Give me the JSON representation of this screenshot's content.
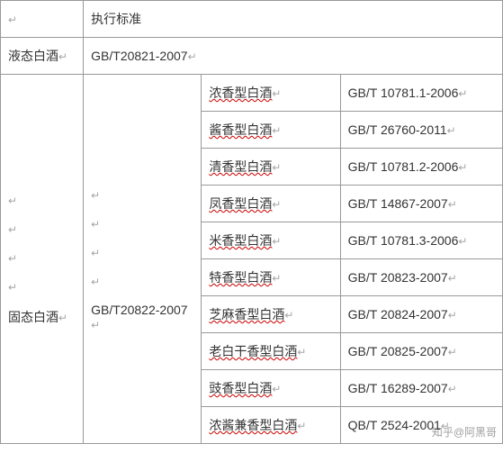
{
  "enter_glyph": "↵",
  "colors": {
    "border": "#999999",
    "text": "#333333",
    "enter_mark": "#808080",
    "squiggle": "#cc0000",
    "watermark": "rgba(80,80,80,0.55)",
    "background": "#ffffff"
  },
  "header": {
    "col1": "",
    "col2": "执行标准"
  },
  "row_liquid": {
    "label": "液态白酒",
    "standard": "GB/T20821-2007"
  },
  "row_solid": {
    "label": "固态白酒",
    "standard": "GB/T20822-2007",
    "subrows": [
      {
        "name": "浓香型白酒",
        "std": "GB/T 10781.1-2006"
      },
      {
        "name": "酱香型白酒",
        "std": "GB/T 26760-2011"
      },
      {
        "name": "清香型白酒",
        "std": "GB/T 10781.2-2006"
      },
      {
        "name": "凤香型白酒",
        "std": "GB/T 14867-2007"
      },
      {
        "name": "米香型白酒",
        "std": "GB/T 10781.3-2006"
      },
      {
        "name": "特香型白酒",
        "std": "GB/T 20823-2007"
      },
      {
        "name": "芝麻香型白酒",
        "std": "GB/T 20824-2007"
      },
      {
        "name": "老白干香型白酒",
        "std": "GB/T 20825-2007"
      },
      {
        "name": "豉香型白酒",
        "std": "GB/T 16289-2007"
      },
      {
        "name": "浓酱兼香型白酒",
        "std": "QB/T 2524-2001"
      }
    ]
  },
  "watermark": "知乎@阿黑哥"
}
